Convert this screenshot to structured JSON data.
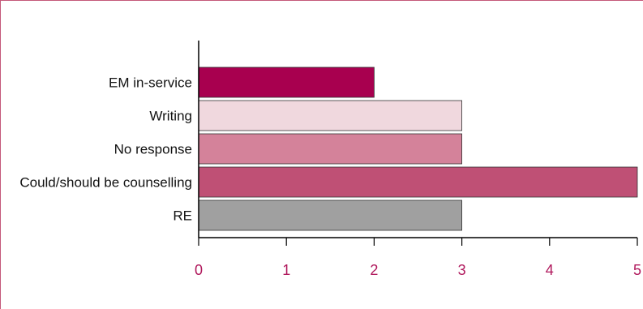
{
  "chart_data": {
    "type": "bar",
    "orientation": "horizontal",
    "title": "",
    "xlabel": "",
    "ylabel": "",
    "categories": [
      "EM in-service",
      "Writing",
      "No response",
      "Could/should be counselling",
      "RE"
    ],
    "values": [
      2,
      3,
      3,
      5,
      3
    ],
    "bar_colors": [
      "#a8004f",
      "#f0d8de",
      "#d4829a",
      "#bf5075",
      "#a0a0a0"
    ],
    "xlim": [
      0,
      5
    ],
    "xticks": [
      "0",
      "1",
      "2",
      "3",
      "4",
      "5"
    ],
    "grid": false,
    "legend": "none",
    "tick_label_color": "#b0185c",
    "frame_color": "#c4597a"
  }
}
